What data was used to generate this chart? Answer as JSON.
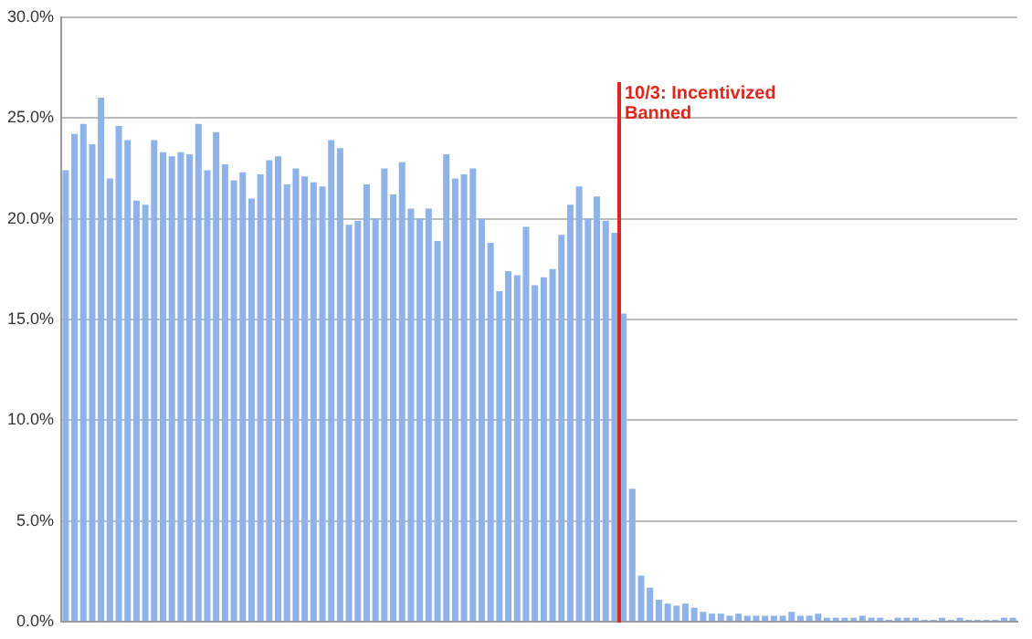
{
  "chart_data": {
    "type": "bar",
    "categories": [
      null,
      null,
      null,
      null,
      null,
      null,
      null,
      null,
      null,
      null,
      null,
      null,
      null,
      null,
      null,
      null,
      null,
      null,
      null,
      null,
      null,
      null,
      null,
      null,
      null,
      null,
      null,
      null,
      null,
      null,
      null,
      null,
      null,
      null,
      null,
      null,
      null,
      null,
      null,
      null,
      null,
      null,
      null,
      null,
      null,
      null,
      null,
      null,
      null,
      null,
      null,
      null,
      null,
      null,
      null,
      null,
      null,
      null,
      null,
      null,
      null,
      null,
      null,
      null,
      null,
      null,
      null,
      null,
      null,
      null,
      null,
      null,
      null,
      null,
      null,
      null,
      null,
      null,
      null,
      null,
      null,
      null,
      null,
      null,
      null,
      null,
      null,
      null,
      null,
      null,
      null,
      null,
      null,
      null,
      null,
      null,
      null,
      null,
      null,
      null,
      null,
      null,
      null,
      null,
      null,
      null,
      null,
      null
    ],
    "values": [
      22.4,
      24.2,
      24.7,
      23.7,
      26.0,
      22.0,
      24.6,
      23.9,
      20.9,
      20.7,
      23.9,
      23.3,
      23.1,
      23.3,
      23.2,
      24.7,
      22.4,
      24.3,
      22.7,
      21.9,
      22.3,
      21.0,
      22.2,
      22.9,
      23.1,
      21.7,
      22.5,
      22.1,
      21.8,
      21.6,
      23.9,
      23.5,
      19.7,
      19.9,
      21.7,
      20.0,
      22.5,
      21.2,
      22.8,
      20.5,
      20.0,
      20.5,
      18.9,
      23.2,
      22.0,
      22.2,
      22.5,
      20.0,
      18.8,
      16.4,
      17.4,
      17.2,
      19.6,
      16.7,
      17.1,
      17.5,
      19.2,
      20.7,
      21.6,
      20.0,
      21.1,
      19.9,
      19.3,
      15.3,
      6.6,
      2.3,
      1.7,
      1.1,
      0.9,
      0.8,
      0.9,
      0.7,
      0.5,
      0.4,
      0.4,
      0.3,
      0.4,
      0.3,
      0.3,
      0.3,
      0.3,
      0.3,
      0.5,
      0.3,
      0.3,
      0.4,
      0.2,
      0.2,
      0.2,
      0.2,
      0.3,
      0.2,
      0.2,
      0.1,
      0.2,
      0.2,
      0.2,
      0.1,
      0.1,
      0.2,
      0.1,
      0.2,
      0.1,
      0.1,
      0.1,
      0.1,
      0.2,
      0.2
    ],
    "color": "#8db3e8",
    "ylim": [
      0,
      30
    ],
    "yticks": [
      {
        "value": 0,
        "label": "0.0%"
      },
      {
        "value": 5,
        "label": "5.0%"
      },
      {
        "value": 10,
        "label": "10.0%"
      },
      {
        "value": 15,
        "label": "15.0%"
      },
      {
        "value": 20,
        "label": "20.0%"
      },
      {
        "value": 25,
        "label": "25.0%"
      },
      {
        "value": 30,
        "label": "30.0%"
      }
    ],
    "grid": "y",
    "tick_labels": "y",
    "annotations": [
      "10/3: Incentivized Banned"
    ]
  }
}
